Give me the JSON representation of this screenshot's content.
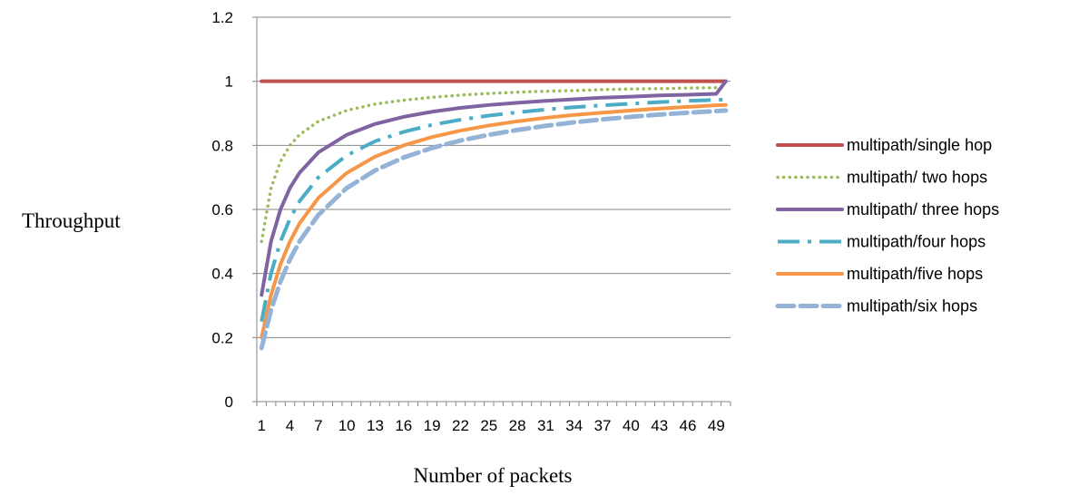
{
  "chart_data": {
    "type": "line",
    "xlabel": "Number of packets",
    "ylabel": "Throughput",
    "x_range": [
      1,
      50
    ],
    "x_tick_labels": [
      "1",
      "4",
      "7",
      "10",
      "13",
      "16",
      "19",
      "22",
      "25",
      "28",
      "31",
      "34",
      "37",
      "40",
      "43",
      "46",
      "49"
    ],
    "ylim": [
      0,
      1.2
    ],
    "y_ticks": [
      0,
      0.2,
      0.4,
      0.6,
      0.8,
      1,
      1.2
    ],
    "y_tick_labels": [
      "0",
      "0.2",
      "0.4",
      "0.6",
      "0.8",
      "1",
      "1.2"
    ],
    "grid": "horizontal",
    "legend_position": "right",
    "series": [
      {
        "name": "multipath/single hop",
        "color": "#C0504D",
        "style": "solid",
        "x": [
          1,
          2,
          3,
          4,
          5,
          7,
          10,
          13,
          16,
          19,
          22,
          25,
          28,
          31,
          34,
          37,
          40,
          43,
          46,
          49,
          50
        ],
        "y": [
          1,
          1,
          1,
          1,
          1,
          1,
          1,
          1,
          1,
          1,
          1,
          1,
          1,
          1,
          1,
          1,
          1,
          1,
          1,
          1,
          1
        ]
      },
      {
        "name": "multipath/ two hops",
        "color": "#9BBB59",
        "style": "dotted",
        "x": [
          1,
          2,
          3,
          4,
          5,
          7,
          10,
          13,
          16,
          19,
          22,
          25,
          28,
          31,
          34,
          37,
          40,
          43,
          46,
          49,
          50
        ],
        "y": [
          0.5,
          0.667,
          0.75,
          0.8,
          0.833,
          0.875,
          0.909,
          0.929,
          0.941,
          0.95,
          0.957,
          0.962,
          0.966,
          0.969,
          0.971,
          0.974,
          0.976,
          0.977,
          0.979,
          0.98,
          0.98
        ]
      },
      {
        "name": "multipath/ three hops",
        "color": "#8064A2",
        "style": "solid",
        "x": [
          1,
          2,
          3,
          4,
          5,
          7,
          10,
          13,
          16,
          19,
          22,
          25,
          28,
          31,
          34,
          37,
          40,
          43,
          46,
          49,
          50
        ],
        "y": [
          0.333,
          0.5,
          0.6,
          0.667,
          0.714,
          0.778,
          0.833,
          0.867,
          0.889,
          0.905,
          0.917,
          0.926,
          0.933,
          0.939,
          0.944,
          0.949,
          0.952,
          0.956,
          0.958,
          0.961,
          1
        ]
      },
      {
        "name": "multipath/four hops",
        "color": "#4BACC6",
        "style": "long-dash",
        "x": [
          1,
          2,
          3,
          4,
          5,
          7,
          10,
          13,
          16,
          19,
          22,
          25,
          28,
          31,
          34,
          37,
          40,
          43,
          46,
          49,
          50
        ],
        "y": [
          0.25,
          0.4,
          0.5,
          0.571,
          0.625,
          0.7,
          0.769,
          0.813,
          0.842,
          0.864,
          0.88,
          0.893,
          0.903,
          0.912,
          0.919,
          0.925,
          0.93,
          0.935,
          0.939,
          0.942,
          0.943
        ]
      },
      {
        "name": "multipath/five hops",
        "color": "#F79646",
        "style": "solid",
        "x": [
          1,
          2,
          3,
          4,
          5,
          7,
          10,
          13,
          16,
          19,
          22,
          25,
          28,
          31,
          34,
          37,
          40,
          43,
          46,
          49,
          50
        ],
        "y": [
          0.2,
          0.333,
          0.429,
          0.5,
          0.556,
          0.636,
          0.714,
          0.765,
          0.8,
          0.826,
          0.846,
          0.862,
          0.875,
          0.886,
          0.895,
          0.902,
          0.909,
          0.915,
          0.92,
          0.925,
          0.926
        ]
      },
      {
        "name": "multipath/six hops",
        "color": "#95B3D7",
        "style": "dashed",
        "x": [
          1,
          2,
          3,
          4,
          5,
          7,
          10,
          13,
          16,
          19,
          22,
          25,
          28,
          31,
          34,
          37,
          40,
          43,
          46,
          49,
          50
        ],
        "y": [
          0.167,
          0.286,
          0.375,
          0.444,
          0.5,
          0.583,
          0.667,
          0.722,
          0.762,
          0.792,
          0.815,
          0.833,
          0.848,
          0.861,
          0.872,
          0.881,
          0.889,
          0.896,
          0.902,
          0.907,
          0.909
        ]
      }
    ]
  }
}
